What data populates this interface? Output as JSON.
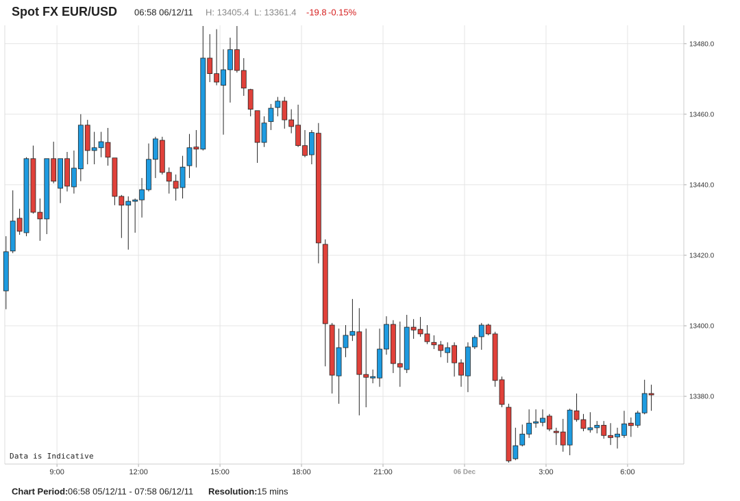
{
  "header": {
    "title": "Spot FX EUR/USD",
    "timestamp": "06:58 06/12/11",
    "high": "H: 13405.4",
    "low": "L: 13361.4",
    "change": "-19.8",
    "change_pct": "-0.15%"
  },
  "footer": {
    "period_label": "Chart Period:",
    "period": "06:58 05/12/11 - 07:58 06/12/11",
    "resolution_label": "Resolution:",
    "resolution": "15 mins"
  },
  "chart_data": {
    "type": "candlestick",
    "annotation": "Data is Indicative",
    "up_color": "#1e9be0",
    "down_color": "#e0413a",
    "grid": true,
    "xlim": [
      7.08,
      32.07
    ],
    "ylim": [
      13360.8,
      13485.2
    ],
    "xticks": [
      {
        "value": 9,
        "label": "9:00"
      },
      {
        "value": 12,
        "label": "12:00"
      },
      {
        "value": 15,
        "label": "15:00"
      },
      {
        "value": 18,
        "label": "18:00"
      },
      {
        "value": 21,
        "label": "21:00"
      },
      {
        "value": 24,
        "label": "06 Dec"
      },
      {
        "value": 27,
        "label": "3:00"
      },
      {
        "value": 30,
        "label": "6:00"
      }
    ],
    "yticks": [
      {
        "value": 13380,
        "label": "13380.0"
      },
      {
        "value": 13400,
        "label": "13400.0"
      },
      {
        "value": 13420,
        "label": "13420.0"
      },
      {
        "value": 13440,
        "label": "13440.0"
      },
      {
        "value": 13460,
        "label": "13460.0"
      },
      {
        "value": 13480,
        "label": "13480.0"
      }
    ],
    "x": [
      7.125,
      7.375,
      7.625,
      7.875,
      8.125,
      8.375,
      8.625,
      8.875,
      9.125,
      9.375,
      9.625,
      9.875,
      10.125,
      10.375,
      10.625,
      10.875,
      11.125,
      11.375,
      11.625,
      11.875,
      12.125,
      12.375,
      12.625,
      12.875,
      13.125,
      13.375,
      13.625,
      13.875,
      14.125,
      14.375,
      14.625,
      14.875,
      15.125,
      15.375,
      15.625,
      15.875,
      16.125,
      16.375,
      16.625,
      16.875,
      17.125,
      17.375,
      17.625,
      17.875,
      18.125,
      18.375,
      18.625,
      18.875,
      19.125,
      19.375,
      19.625,
      19.875,
      20.125,
      20.375,
      20.625,
      20.875,
      21.125,
      21.375,
      21.625,
      21.875,
      22.125,
      22.375,
      22.625,
      22.875,
      23.125,
      23.375,
      23.625,
      23.875,
      24.125,
      24.375,
      24.625,
      24.875,
      25.125,
      25.375,
      25.625,
      25.875,
      26.125,
      26.375,
      26.625,
      26.875,
      27.125,
      27.375,
      27.625,
      27.875,
      28.125,
      28.375,
      28.625,
      28.875,
      29.125,
      29.375,
      29.625,
      29.875,
      30.125,
      30.375,
      30.625,
      30.875
    ],
    "open": [
      13409.9,
      13421.2,
      13430.5,
      13426.4,
      13447.4,
      13432.2,
      13430.3,
      13447.4,
      13439.0,
      13447.4,
      13439.4,
      13444.5,
      13456.9,
      13449.7,
      13450.5,
      13452.0,
      13447.6,
      13436.7,
      13434.2,
      13435.3,
      13435.7,
      13438.6,
      13447.2,
      13452.6,
      13443.5,
      13441.0,
      13439.2,
      13445.4,
      13450.7,
      13450.1,
      13475.9,
      13471.5,
      13468.2,
      13472.6,
      13478.3,
      13472.4,
      13467.0,
      13461.0,
      13452.0,
      13457.9,
      13461.9,
      13463.7,
      13458.4,
      13456.9,
      13451.1,
      13448.5,
      13454.6,
      13423.1,
      13400.2,
      13385.8,
      13393.8,
      13397.3,
      13398.3,
      13386.2,
      13385.2,
      13385.2,
      13393.4,
      13400.4,
      13389.3,
      13387.6,
      13399.6,
      13399.0,
      13397.7,
      13395.3,
      13394.6,
      13392.4,
      13394.4,
      13389.5,
      13385.8,
      13394.0,
      13396.9,
      13400.2,
      13397.7,
      13384.7,
      13376.9,
      13362.3,
      13366.2,
      13369.3,
      13372.4,
      13372.6,
      13374.4,
      13370.1,
      13369.9,
      13366.2,
      13375.9,
      13373.4,
      13370.5,
      13371.1,
      13371.8,
      13368.9,
      13368.5,
      13368.9,
      13372.4,
      13371.8,
      13375.3,
      13380.8
    ],
    "high": [
      13425.4,
      13438.4,
      13433.2,
      13447.8,
      13451.1,
      13436.1,
      13447.4,
      13452.2,
      13447.4,
      13449.3,
      13449.7,
      13460.0,
      13458.4,
      13455.0,
      13455.0,
      13456.1,
      13447.6,
      13437.1,
      13436.7,
      13436.1,
      13441.9,
      13451.7,
      13453.6,
      13453.6,
      13444.9,
      13442.9,
      13448.2,
      13454.4,
      13455.5,
      13485.0,
      13482.7,
      13484.1,
      13478.4,
      13481.7,
      13485.0,
      13475.9,
      13467.2,
      13461.0,
      13459.4,
      13462.9,
      13464.9,
      13464.9,
      13461.4,
      13462.7,
      13455.5,
      13455.5,
      13457.5,
      13424.5,
      13400.8,
      13399.2,
      13400.2,
      13407.6,
      13405.0,
      13399.2,
      13387.6,
      13399.2,
      13402.7,
      13401.6,
      13401.2,
      13403.1,
      13401.9,
      13402.5,
      13400.2,
      13397.3,
      13395.7,
      13395.3,
      13395.3,
      13390.5,
      13395.3,
      13397.3,
      13400.8,
      13400.6,
      13398.3,
      13385.6,
      13377.9,
      13371.1,
      13372.0,
      13376.3,
      13376.3,
      13376.3,
      13375.0,
      13371.1,
      13373.6,
      13376.5,
      13380.8,
      13375.0,
      13375.5,
      13373.0,
      13373.0,
      13372.4,
      13371.1,
      13375.9,
      13374.0,
      13375.9,
      13384.7,
      13383.3
    ],
    "low": [
      13404.7,
      13420.6,
      13425.8,
      13425.4,
      13431.8,
      13424.1,
      13426.0,
      13440.4,
      13434.8,
      13438.1,
      13437.5,
      13441.0,
      13445.8,
      13445.8,
      13447.8,
      13445.4,
      13434.2,
      13424.9,
      13421.6,
      13426.4,
      13430.7,
      13438.1,
      13441.9,
      13442.9,
      13437.5,
      13435.5,
      13436.1,
      13441.9,
      13444.9,
      13449.7,
      13469.1,
      13468.2,
      13454.2,
      13463.3,
      13471.8,
      13465.2,
      13459.4,
      13446.2,
      13450.7,
      13455.5,
      13459.4,
      13455.9,
      13454.6,
      13450.7,
      13447.8,
      13445.8,
      13417.7,
      13388.5,
      13380.8,
      13377.9,
      13391.1,
      13395.7,
      13374.6,
      13376.9,
      13383.7,
      13382.7,
      13391.8,
      13386.6,
      13382.7,
      13386.6,
      13396.3,
      13396.9,
      13394.8,
      13393.4,
      13391.1,
      13389.5,
      13385.6,
      13382.7,
      13381.2,
      13393.4,
      13393.2,
      13397.3,
      13382.7,
      13376.9,
      13361.2,
      13361.9,
      13365.8,
      13368.2,
      13371.1,
      13371.5,
      13370.1,
      13366.2,
      13364.3,
      13363.3,
      13372.8,
      13370.1,
      13369.7,
      13369.5,
      13368.0,
      13366.2,
      13365.2,
      13368.2,
      13368.5,
      13371.1,
      13374.9,
      13375.9
    ],
    "close": [
      13421.0,
      13429.7,
      13426.8,
      13447.4,
      13432.2,
      13430.3,
      13447.4,
      13441.0,
      13447.4,
      13439.6,
      13444.7,
      13456.9,
      13449.7,
      13450.5,
      13452.2,
      13447.8,
      13436.7,
      13434.2,
      13435.3,
      13435.7,
      13438.6,
      13447.2,
      13453.0,
      13443.5,
      13441.0,
      13439.0,
      13445.0,
      13450.5,
      13450.1,
      13475.9,
      13471.5,
      13469.1,
      13472.6,
      13478.3,
      13472.4,
      13467.4,
      13461.4,
      13452.0,
      13457.5,
      13461.7,
      13463.7,
      13458.4,
      13456.5,
      13451.1,
      13448.3,
      13454.8,
      13423.5,
      13400.6,
      13386.0,
      13393.8,
      13397.3,
      13398.4,
      13386.2,
      13385.4,
      13385.6,
      13393.4,
      13400.4,
      13389.3,
      13388.3,
      13399.6,
      13398.8,
      13397.7,
      13395.5,
      13394.6,
      13393.0,
      13393.8,
      13389.5,
      13386.0,
      13394.0,
      13396.7,
      13400.2,
      13397.7,
      13384.5,
      13377.7,
      13361.7,
      13366.0,
      13369.3,
      13372.4,
      13372.8,
      13373.8,
      13370.7,
      13369.7,
      13366.2,
      13376.1,
      13373.4,
      13370.9,
      13371.1,
      13371.8,
      13368.9,
      13368.3,
      13369.3,
      13372.2,
      13371.7,
      13375.3,
      13380.8,
      13380.4
    ]
  }
}
